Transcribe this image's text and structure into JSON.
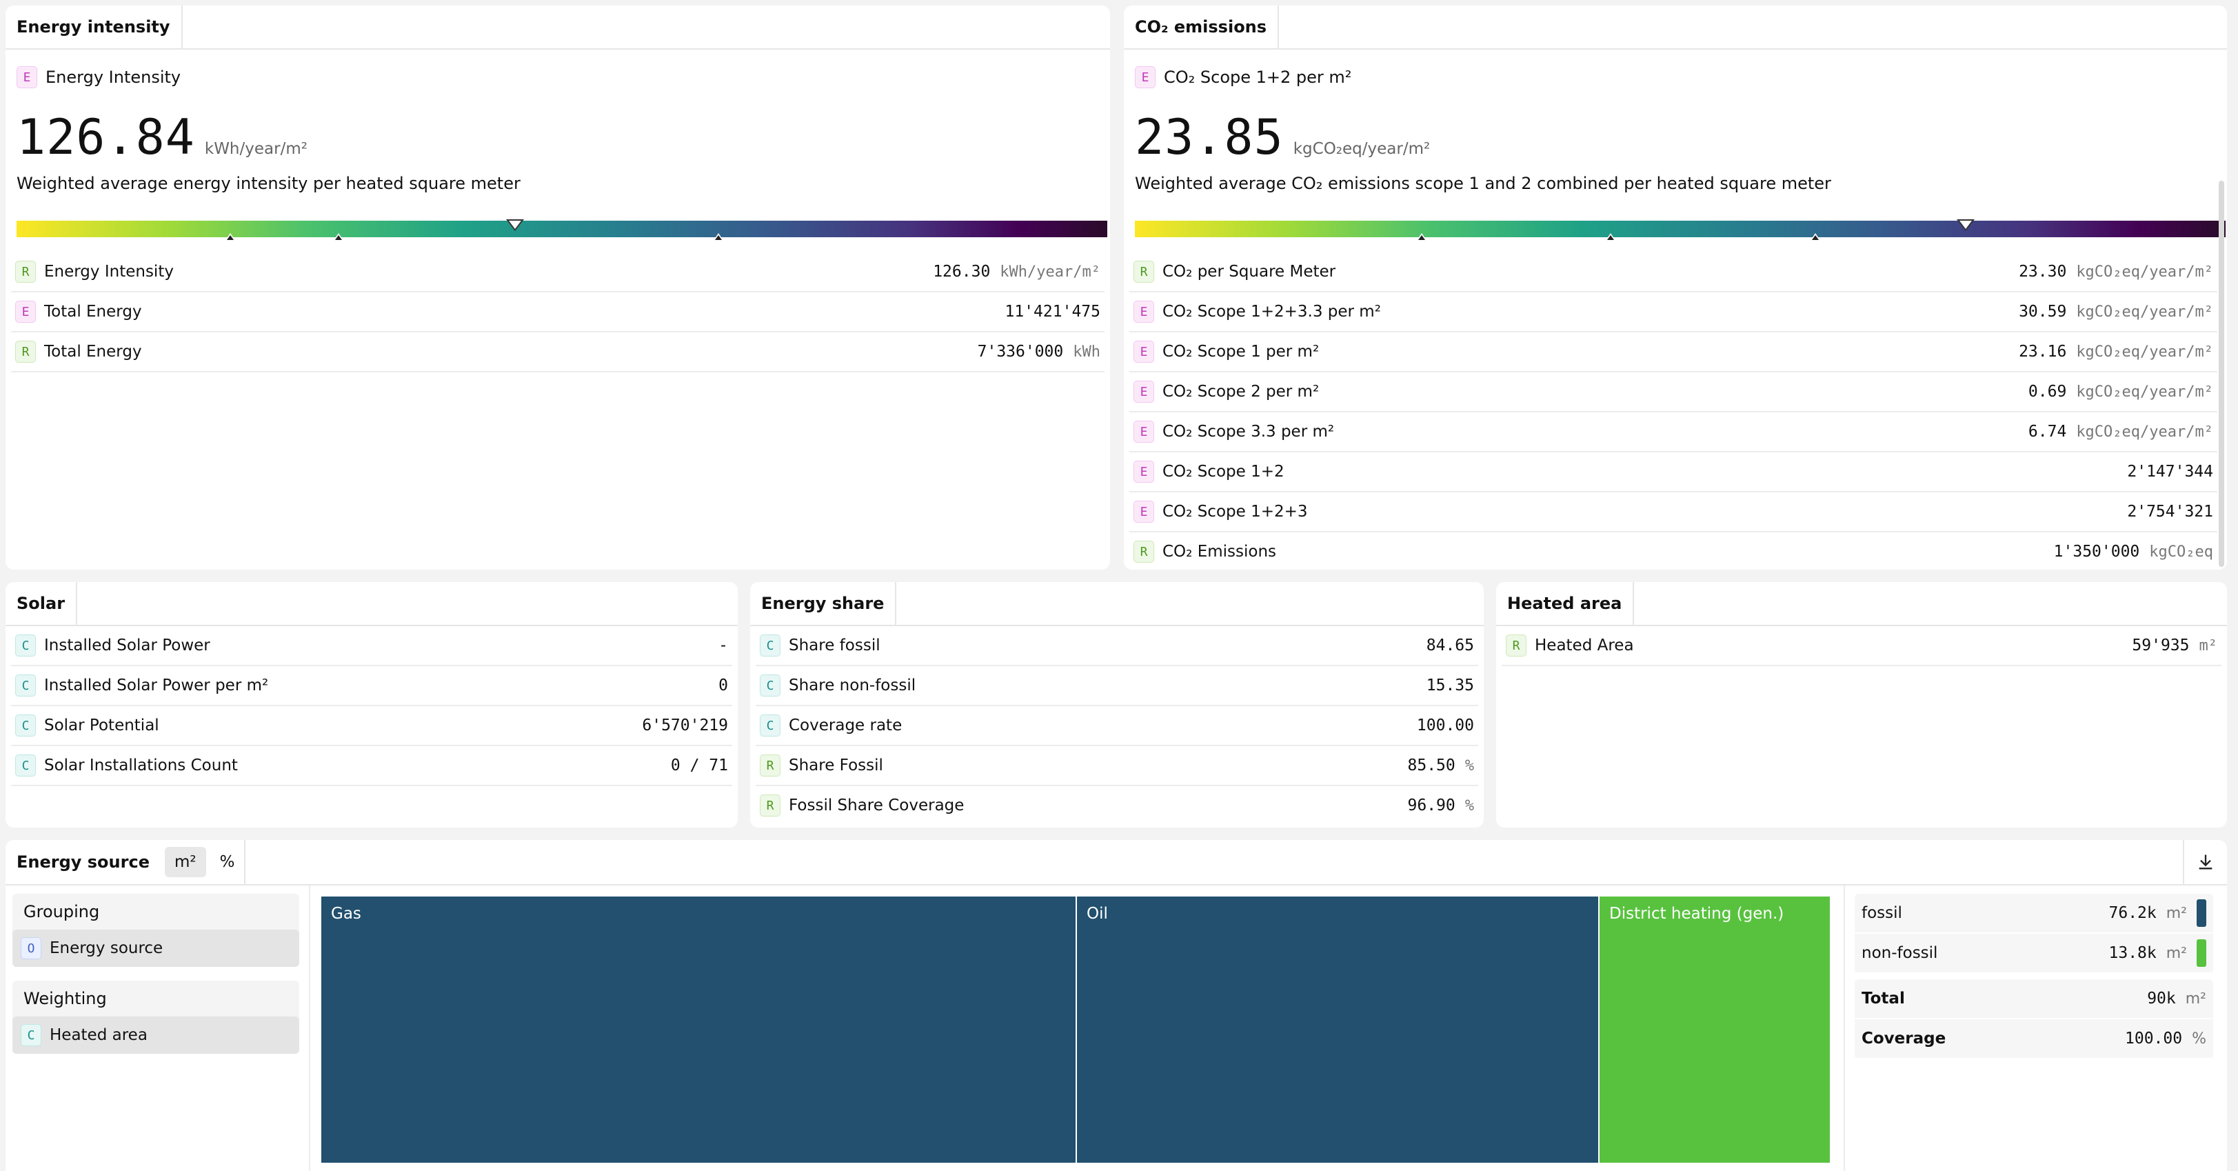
{
  "energy_intensity": {
    "tab": "Energy intensity",
    "kpi_badge": "E",
    "kpi_title": "Energy Intensity",
    "kpi_value": "126.84",
    "kpi_unit": "kWh/year/m²",
    "kpi_desc": "Weighted average energy intensity per heated square meter",
    "rows": [
      {
        "badge": "R",
        "label": "Energy Intensity",
        "value": "126.30",
        "unit": "kWh/year/m²"
      },
      {
        "badge": "E",
        "label": "Total Energy",
        "value": "11'421'475",
        "unit": ""
      },
      {
        "badge": "R",
        "label": "Total Energy",
        "value": "7'336'000",
        "unit": "kWh"
      }
    ]
  },
  "co2": {
    "tab": "CO₂ emissions",
    "kpi_badge": "E",
    "kpi_title": "CO₂ Scope 1+2 per m²",
    "kpi_value": "23.85",
    "kpi_unit": "kgCO₂eq/year/m²",
    "kpi_desc": "Weighted average CO₂ emissions scope 1 and 2 combined per heated square meter",
    "rows": [
      {
        "badge": "R",
        "label": "CO₂ per Square Meter",
        "value": "23.30",
        "unit": "kgCO₂eq/year/m²"
      },
      {
        "badge": "E",
        "label": "CO₂ Scope 1+2+3.3 per m²",
        "value": "30.59",
        "unit": "kgCO₂eq/year/m²"
      },
      {
        "badge": "E",
        "label": "CO₂ Scope 1 per m²",
        "value": "23.16",
        "unit": "kgCO₂eq/year/m²"
      },
      {
        "badge": "E",
        "label": "CO₂ Scope 2 per m²",
        "value": "0.69",
        "unit": "kgCO₂eq/year/m²"
      },
      {
        "badge": "E",
        "label": "CO₂ Scope 3.3 per m²",
        "value": "6.74",
        "unit": "kgCO₂eq/year/m²"
      },
      {
        "badge": "E",
        "label": "CO₂ Scope 1+2",
        "value": "2'147'344",
        "unit": ""
      },
      {
        "badge": "E",
        "label": "CO₂ Scope 1+2+3",
        "value": "2'754'321",
        "unit": ""
      },
      {
        "badge": "R",
        "label": "CO₂ Emissions",
        "value": "1'350'000",
        "unit": "kgCO₂eq"
      }
    ]
  },
  "solar": {
    "tab": "Solar",
    "rows": [
      {
        "badge": "C",
        "label": "Installed Solar Power",
        "value": "-",
        "unit": ""
      },
      {
        "badge": "C",
        "label": "Installed Solar Power per m²",
        "value": "0",
        "unit": ""
      },
      {
        "badge": "C",
        "label": "Solar Potential",
        "value": "6'570'219",
        "unit": ""
      },
      {
        "badge": "C",
        "label": "Solar Installations Count",
        "value": "0 / 71",
        "unit": ""
      }
    ]
  },
  "energy_share": {
    "tab": "Energy share",
    "rows": [
      {
        "badge": "C",
        "label": "Share fossil",
        "value": "84.65",
        "unit": ""
      },
      {
        "badge": "C",
        "label": "Share non-fossil",
        "value": "15.35",
        "unit": ""
      },
      {
        "badge": "C",
        "label": "Coverage rate",
        "value": "100.00",
        "unit": ""
      },
      {
        "badge": "R",
        "label": "Share Fossil",
        "value": "85.50",
        "unit": "%"
      },
      {
        "badge": "R",
        "label": "Fossil Share Coverage",
        "value": "96.90",
        "unit": "%"
      }
    ]
  },
  "heated_area": {
    "tab": "Heated area",
    "rows": [
      {
        "badge": "R",
        "label": "Heated Area",
        "value": "59'935",
        "unit": "m²"
      }
    ]
  },
  "energy_source": {
    "tab": "Energy source",
    "toggle_m2": "m²",
    "toggle_pct": "%",
    "download_icon": "download-icon",
    "grouping_label": "Grouping",
    "grouping_badge": "O",
    "grouping_value": "Energy source",
    "weighting_label": "Weighting",
    "weighting_badge": "C",
    "weighting_value": "Heated area",
    "treemap": [
      {
        "label": "Gas",
        "color": "#22506e"
      },
      {
        "label": "Oil",
        "color": "#22506e"
      },
      {
        "label": "District heating (gen.)",
        "color": "#58c23f"
      }
    ],
    "legend": [
      {
        "label": "fossil",
        "value": "76.2k",
        "unit": "m²",
        "color": "#22506e"
      },
      {
        "label": "non-fossil",
        "value": "13.8k",
        "unit": "m²",
        "color": "#58c23f"
      }
    ],
    "total_label": "Total",
    "total_value": "90k",
    "total_unit": "m²",
    "coverage_label": "Coverage",
    "coverage_value": "100.00",
    "coverage_unit": "%"
  }
}
